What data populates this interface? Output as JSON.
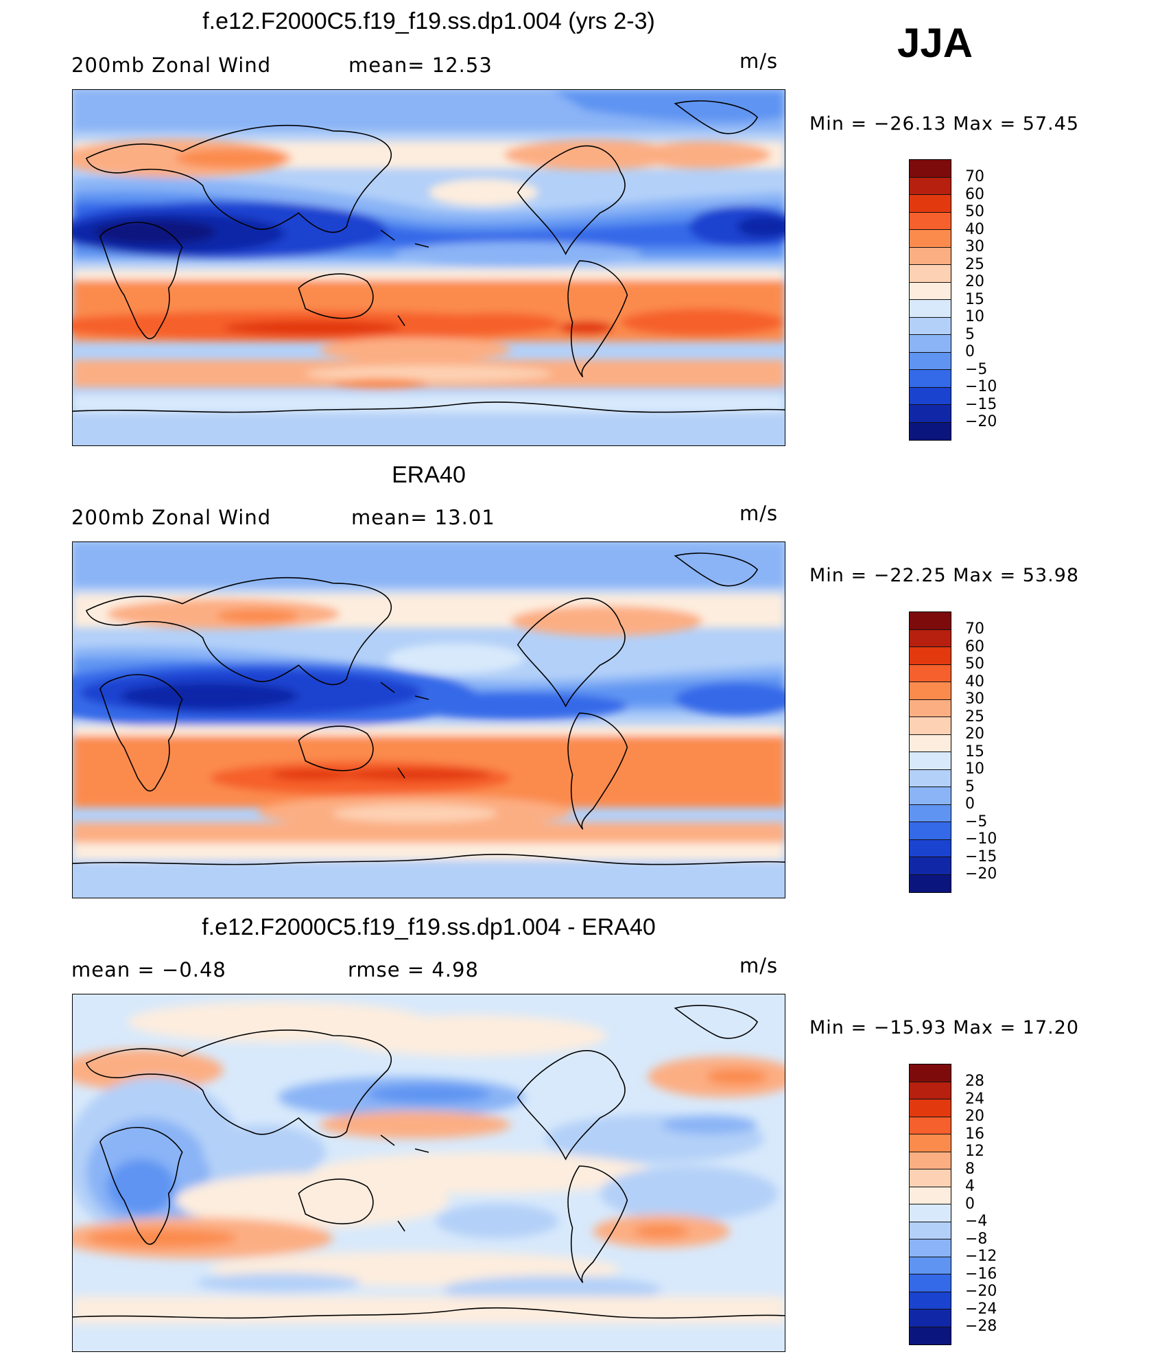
{
  "season": "JJA",
  "panels": [
    {
      "title": "f.e12.F2000C5.f19_f19.ss.dp1.004 (yrs 2-3)",
      "left_label": "200mb  Zonal  Wind",
      "middle_label": "mean=   12.53",
      "units": "m/s",
      "minmax": "Min  =  −26.13  Max  =    57.45",
      "colorbar_labels": [
        "70",
        "60",
        "50",
        "40",
        "30",
        "25",
        "20",
        "15",
        "10",
        "5",
        "0",
        "−5",
        "−10",
        "−15",
        "−20"
      ],
      "colorbar_colors": [
        "#7d0b0b",
        "#b71f0f",
        "#e2390f",
        "#f6602c",
        "#fb8b4d",
        "#fcae83",
        "#fdd1b3",
        "#fdedde",
        "#d8e9fb",
        "#b3d0f8",
        "#8ab4f6",
        "#5f94f2",
        "#3469e8",
        "#1a43d0",
        "#1028a8",
        "#0b157e"
      ]
    },
    {
      "title": "ERA40",
      "left_label": "200mb  Zonal  Wind",
      "middle_label": "mean=   13.01",
      "units": "m/s",
      "minmax": "Min  =  −22.25  Max  =    53.98",
      "colorbar_labels": [
        "70",
        "60",
        "50",
        "40",
        "30",
        "25",
        "20",
        "15",
        "10",
        "5",
        "0",
        "−5",
        "−10",
        "−15",
        "−20"
      ],
      "colorbar_colors": [
        "#7d0b0b",
        "#b71f0f",
        "#e2390f",
        "#f6602c",
        "#fb8b4d",
        "#fcae83",
        "#fdd1b3",
        "#fdedde",
        "#d8e9fb",
        "#b3d0f8",
        "#8ab4f6",
        "#5f94f2",
        "#3469e8",
        "#1a43d0",
        "#1028a8",
        "#0b157e"
      ]
    },
    {
      "title": "f.e12.F2000C5.f19_f19.ss.dp1.004 - ERA40",
      "left_label": "mean  =    −0.48",
      "middle_label": "rmse  =     4.98",
      "units": "m/s",
      "minmax": "Min  =  −15.93  Max  =    17.20",
      "colorbar_labels": [
        "28",
        "24",
        "20",
        "16",
        "12",
        "8",
        "4",
        "0",
        "−4",
        "−8",
        "−12",
        "−16",
        "−20",
        "−24",
        "−28"
      ],
      "colorbar_colors": [
        "#7d0b0b",
        "#b71f0f",
        "#e2390f",
        "#f6602c",
        "#fb8b4d",
        "#fcae83",
        "#fdd1b3",
        "#fdedde",
        "#d8e9fb",
        "#b3d0f8",
        "#8ab4f6",
        "#5f94f2",
        "#3469e8",
        "#1a43d0",
        "#1028a8",
        "#0b157e"
      ]
    }
  ]
}
